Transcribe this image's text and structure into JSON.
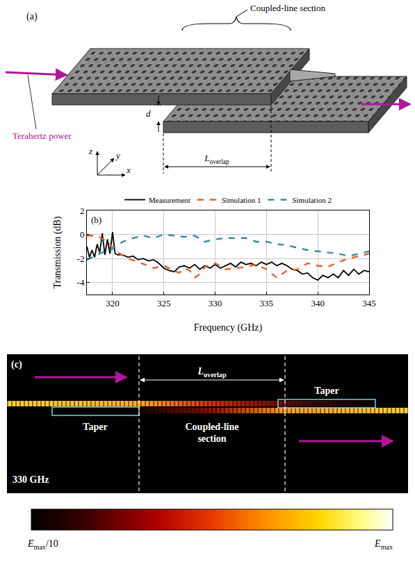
{
  "panel_a": {
    "label": "(a)",
    "callout": "Coupled-line section",
    "input_label": "Terahertz power",
    "gap_label": "d",
    "length_label": {
      "symbol": "L",
      "subscript": "overlap"
    },
    "axes": [
      "x",
      "y",
      "z"
    ]
  },
  "chart_data": {
    "type": "line",
    "annotations": [
      "(b)"
    ],
    "x_label": "Frequency (GHz)",
    "y_label": "Transmission (dB)",
    "xlim": [
      317.5,
      345
    ],
    "ylim": [
      -5,
      2
    ],
    "xticks": [
      320,
      325,
      330,
      335,
      340,
      345
    ],
    "yticks": [
      -4,
      -2,
      0,
      2
    ],
    "grid": true,
    "legend": "top",
    "series": [
      {
        "name": "Measurement",
        "color": "#000000",
        "line_style": "solid",
        "x": [
          317.5,
          317.75,
          318,
          318.25,
          318.5,
          318.75,
          319,
          319.25,
          319.5,
          319.75,
          320,
          320.25,
          320.5,
          321,
          321.5,
          322,
          322.5,
          323,
          323.5,
          324,
          324.5,
          325,
          325.5,
          326,
          326.5,
          327,
          327.5,
          328,
          328.5,
          329,
          329.5,
          330,
          330.5,
          331,
          331.5,
          332,
          332.5,
          333,
          333.5,
          334,
          334.5,
          335,
          335.5,
          336,
          336.5,
          337,
          337.5,
          338,
          338.5,
          339,
          339.5,
          340,
          340.5,
          341,
          341.5,
          342,
          342.5,
          343,
          343.5,
          344,
          344.5,
          345
        ],
        "values": [
          -1.0,
          -1.9,
          -1.3,
          -1.9,
          -0.8,
          -1.5,
          0.1,
          -1.7,
          -0.4,
          -1.6,
          0.2,
          -1.6,
          -1.7,
          -1.7,
          -1.9,
          -1.8,
          -2.1,
          -2.0,
          -2.2,
          -2.1,
          -2.4,
          -2.8,
          -3.0,
          -3.1,
          -2.7,
          -2.6,
          -2.8,
          -2.5,
          -2.9,
          -2.6,
          -2.8,
          -2.5,
          -2.8,
          -2.6,
          -2.4,
          -2.7,
          -2.3,
          -2.5,
          -2.4,
          -2.6,
          -2.3,
          -2.5,
          -2.3,
          -2.6,
          -2.4,
          -2.6,
          -2.9,
          -3.0,
          -3.3,
          -3.2,
          -3.6,
          -3.8,
          -3.4,
          -3.6,
          -3.3,
          -3.6,
          -3.0,
          -3.4,
          -2.9,
          -3.3,
          -3.0,
          -3.1
        ]
      },
      {
        "name": "Simulation 1",
        "color": "#e2622b",
        "line_style": "dashed",
        "x": [
          317.5,
          318.5,
          319.5,
          320.5,
          321.5,
          322.5,
          323.5,
          324,
          325,
          326,
          326.5,
          327,
          327.5,
          328,
          328.5,
          329,
          330,
          331,
          332,
          333,
          334,
          335,
          336,
          336.5,
          337,
          338,
          339,
          340,
          341,
          342,
          343,
          344,
          345
        ],
        "values": [
          -0.1,
          -0.1,
          -0.6,
          -1.5,
          -2.0,
          -2.3,
          -2.6,
          -2.8,
          -2.6,
          -3.0,
          -3.2,
          -2.8,
          -3.0,
          -3.6,
          -3.3,
          -2.7,
          -2.4,
          -2.9,
          -2.8,
          -2.7,
          -2.5,
          -2.9,
          -3.6,
          -3.3,
          -3.0,
          -2.9,
          -2.4,
          -2.6,
          -2.7,
          -2.3,
          -2.0,
          -1.8,
          -1.6
        ]
      },
      {
        "name": "Simulation 2",
        "color": "#3a8c9c",
        "line_style": "dashed",
        "x": [
          317.5,
          318,
          319,
          320,
          321,
          322,
          323,
          324,
          325,
          326,
          327,
          328,
          329,
          330,
          331,
          332,
          333,
          334,
          335,
          336,
          337,
          338,
          339,
          340,
          341,
          342,
          343,
          344,
          345
        ],
        "values": [
          -2.1,
          -1.9,
          -1.5,
          -1.2,
          -0.6,
          -0.3,
          -0.1,
          -0.3,
          0.0,
          -0.1,
          -0.2,
          -0.1,
          -0.6,
          -0.4,
          -0.3,
          -0.3,
          -0.3,
          -0.6,
          -0.6,
          -0.8,
          -0.9,
          -1.1,
          -1.3,
          -1.4,
          -1.5,
          -1.6,
          -1.8,
          -1.6,
          -1.4
        ]
      }
    ]
  },
  "panel_c": {
    "label": "(c)",
    "length_label": {
      "symbol": "L",
      "subscript": "overlap"
    },
    "region_labels": [
      "Taper",
      "Coupled-line section",
      "Taper"
    ],
    "frequency": "330 GHz",
    "colorbar": {
      "min_label": {
        "symbol": "E",
        "subscript": "max",
        "suffix": "/10"
      },
      "max_label": {
        "symbol": "E",
        "subscript": "max"
      }
    }
  }
}
